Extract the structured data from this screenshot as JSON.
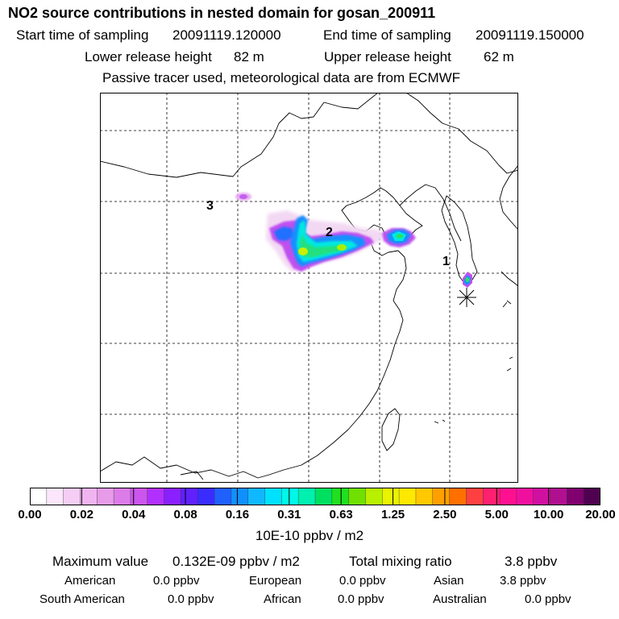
{
  "header": {
    "title": "NO2 source contributions in nested domain for gosan_200911",
    "start_label": "Start time of sampling",
    "start_value": "20091119.120000",
    "end_label": "End time of sampling",
    "end_value": "20091119.150000",
    "lower_label": "Lower release height",
    "lower_value": "82 m",
    "upper_label": "Upper release height",
    "upper_value": "62 m",
    "note": "Passive tracer used, meteorological data are from ECMWF"
  },
  "map": {
    "source_labels": [
      "1",
      "2",
      "3"
    ],
    "receptor_marker": "station-star-icon"
  },
  "colorbar": {
    "colors": [
      "#ffffff",
      "#fbe6fb",
      "#f5cdf5",
      "#f0b4f0",
      "#e89be8",
      "#dc7ce8",
      "#cc55ee",
      "#b230ff",
      "#8a20ff",
      "#6020ff",
      "#3a2cff",
      "#2060ff",
      "#1090ff",
      "#10b8ff",
      "#00e0ff",
      "#00f8e8",
      "#00f0b0",
      "#00e060",
      "#20e020",
      "#70e000",
      "#b8f000",
      "#e8f400",
      "#ffe800",
      "#ffc800",
      "#ffa000",
      "#ff7000",
      "#ff4040",
      "#ff2070",
      "#ff1090",
      "#f010a0",
      "#d010a0",
      "#b01090",
      "#800070",
      "#500050"
    ],
    "tick_labels": [
      "0.00",
      "0.02",
      "0.04",
      "0.08",
      "0.16",
      "0.31",
      "0.63",
      "1.25",
      "2.50",
      "5.00",
      "10.00",
      "20.00"
    ],
    "unit": "10E-10 ppbv / m2"
  },
  "footer": {
    "max_label": "Maximum value",
    "max_value": "0.132E-09 ppbv / m2",
    "total_label": "Total mixing ratio",
    "total_value": "3.8 ppbv",
    "regions": [
      {
        "name": "American",
        "value": "0.0 ppbv"
      },
      {
        "name": "European",
        "value": "0.0 ppbv"
      },
      {
        "name": "Asian",
        "value": "3.8 ppbv"
      },
      {
        "name": "South American",
        "value": "0.0 ppbv"
      },
      {
        "name": "African",
        "value": "0.0 ppbv"
      },
      {
        "name": "Australian",
        "value": "0.0 ppbv"
      }
    ]
  }
}
